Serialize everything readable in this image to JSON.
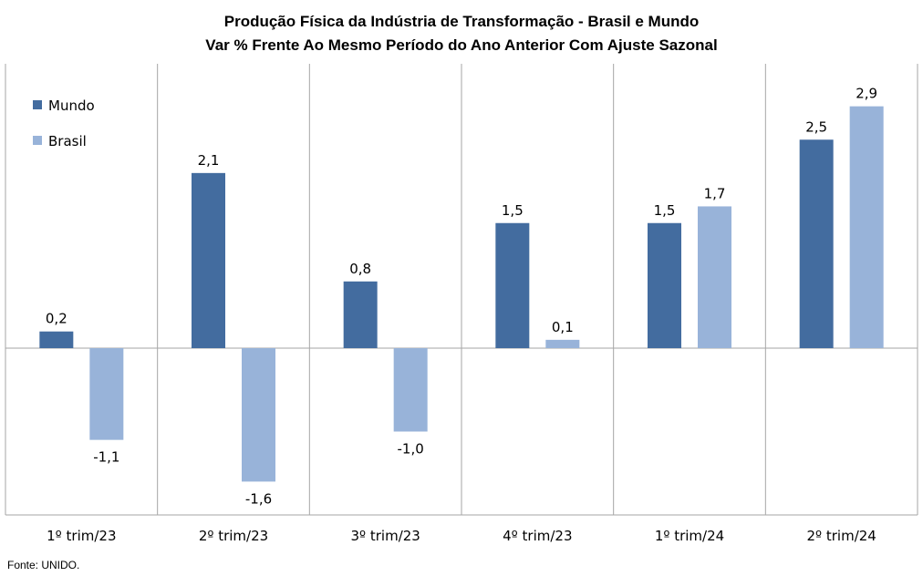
{
  "chart_data": {
    "type": "bar",
    "title": "Produção  Física da Indústria  de Transformação  - Brasil e Mundo",
    "subtitle": "Var % Frente Ao Mesmo Período do Ano Anterior Com Ajuste Sazonal",
    "xlabel": "",
    "ylabel": "",
    "categories": [
      "1º trim/23",
      "2º trim/23",
      "3º trim/23",
      "4º trim/23",
      "1º trim/24",
      "2º trim/24"
    ],
    "series": [
      {
        "name": "Mundo",
        "color": "#436C9F",
        "values": [
          0.2,
          2.1,
          0.8,
          1.5,
          1.5,
          2.5
        ],
        "labels": [
          "0,2",
          "2,1",
          "0,8",
          "1,5",
          "1,5",
          "2,5"
        ]
      },
      {
        "name": "Brasil",
        "color": "#98B3D9",
        "values": [
          -1.1,
          -1.6,
          -1.0,
          0.1,
          1.7,
          2.9
        ],
        "labels": [
          "-1,1",
          "-1,6",
          "-1,0",
          "0,1",
          "1,7",
          "2,9"
        ]
      }
    ],
    "ylim": [
      -1.9,
      3.5
    ],
    "grid": "vertical category separators",
    "legend_position": "top-left"
  },
  "source": "Fonte: UNIDO."
}
